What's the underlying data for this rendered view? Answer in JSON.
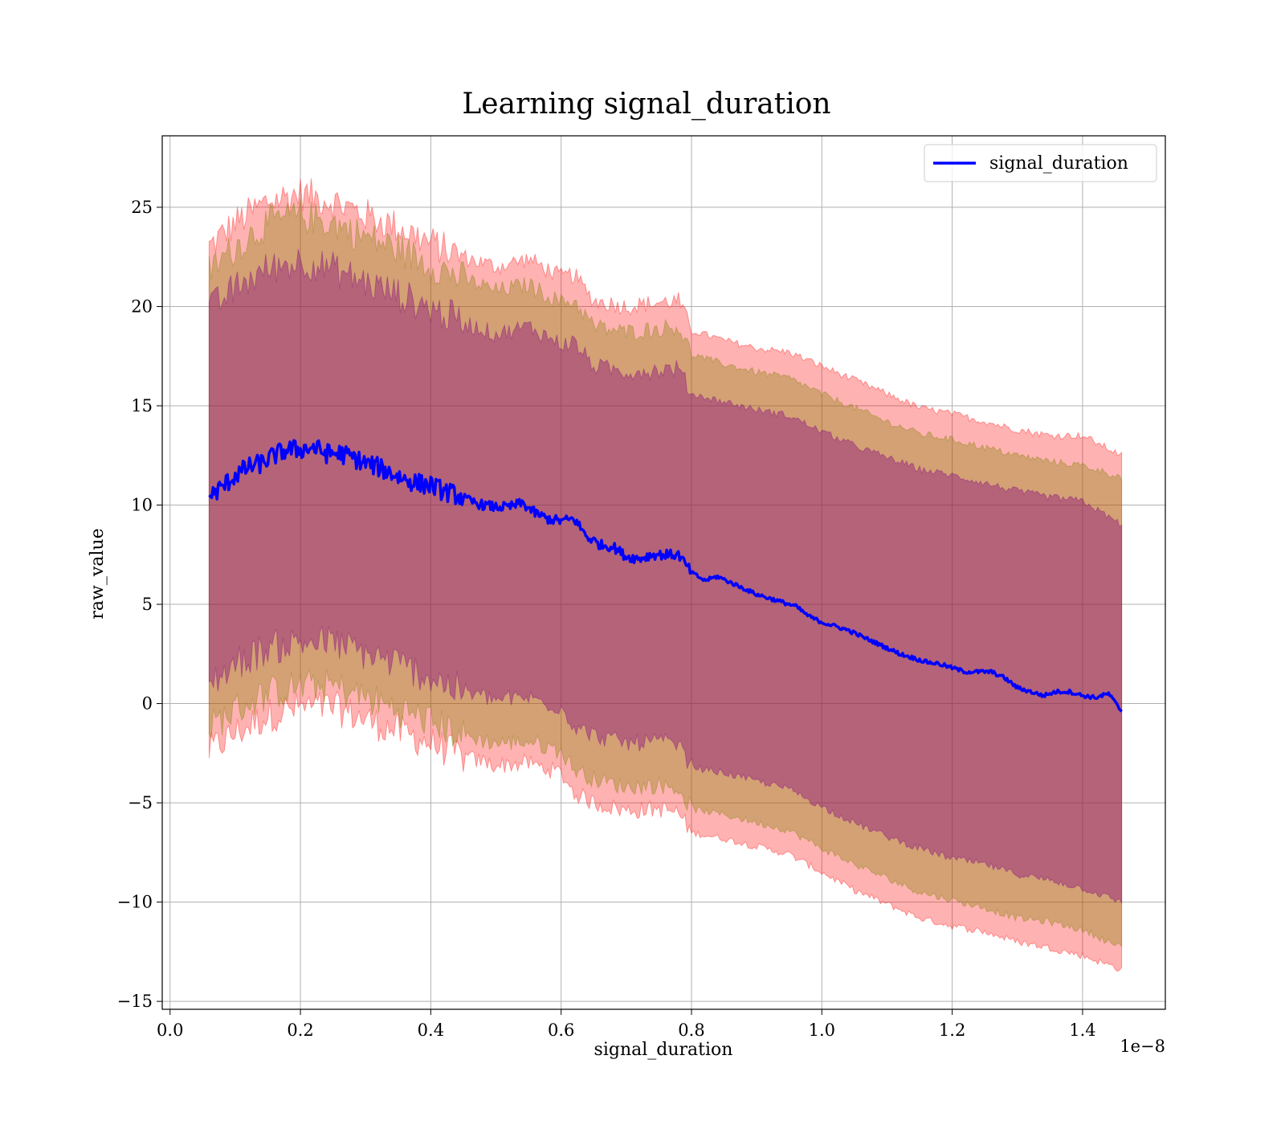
{
  "chart_data": {
    "type": "line",
    "title": "Learning signal_duration",
    "xlabel": "signal_duration",
    "ylabel": "raw_value",
    "x_offset_text": "1e−8",
    "xlim": [
      -0.012,
      1.527
    ],
    "ylim": [
      -15.4,
      28.6
    ],
    "x_ticks": [
      0.0,
      0.2,
      0.4,
      0.6,
      0.8,
      1.0,
      1.2,
      1.4
    ],
    "x_tick_labels": [
      "0.0",
      "0.2",
      "0.4",
      "0.6",
      "0.8",
      "1.0",
      "1.2",
      "1.4"
    ],
    "y_ticks": [
      -15,
      -10,
      -5,
      0,
      5,
      10,
      15,
      20,
      25
    ],
    "y_tick_labels": [
      "−15",
      "−10",
      "−5",
      "0",
      "5",
      "10",
      "15",
      "20",
      "25"
    ],
    "grid": true,
    "legend": {
      "placement": "top-right",
      "entries": [
        "signal_duration"
      ]
    },
    "colors": {
      "line": "#0000ff",
      "band_outer": "#ff0000",
      "band_middle": "#808000",
      "band_inner": "#800080"
    },
    "series": [
      {
        "name": "signal_duration",
        "role": "mean",
        "x": [
          0.06,
          0.08,
          0.1,
          0.12,
          0.14,
          0.16,
          0.18,
          0.2,
          0.22,
          0.24,
          0.26,
          0.28,
          0.3,
          0.32,
          0.34,
          0.36,
          0.38,
          0.4,
          0.42,
          0.44,
          0.46,
          0.48,
          0.5,
          0.52,
          0.54,
          0.56,
          0.58,
          0.6,
          0.62,
          0.64,
          0.66,
          0.68,
          0.7,
          0.72,
          0.74,
          0.76,
          0.78,
          0.8,
          0.82,
          0.84,
          0.86,
          0.88,
          0.9,
          0.92,
          0.94,
          0.96,
          0.98,
          1.0,
          1.02,
          1.04,
          1.06,
          1.08,
          1.1,
          1.12,
          1.14,
          1.16,
          1.18,
          1.2,
          1.22,
          1.24,
          1.26,
          1.28,
          1.3,
          1.32,
          1.34,
          1.36,
          1.38,
          1.4,
          1.42,
          1.44,
          1.46
        ],
        "y": [
          10.4,
          10.9,
          11.5,
          11.9,
          12.1,
          12.5,
          12.8,
          12.8,
          12.9,
          12.6,
          12.6,
          12.4,
          12.1,
          11.9,
          11.6,
          11.3,
          11.1,
          11.0,
          10.7,
          10.5,
          10.2,
          10.0,
          9.9,
          9.9,
          10.1,
          9.6,
          9.3,
          9.2,
          9.3,
          8.4,
          8.0,
          7.9,
          7.4,
          7.3,
          7.5,
          7.5,
          7.5,
          6.6,
          6.2,
          6.4,
          6.1,
          5.8,
          5.5,
          5.3,
          5.1,
          4.9,
          4.4,
          4.1,
          3.9,
          3.7,
          3.4,
          3.1,
          2.8,
          2.5,
          2.3,
          2.1,
          2.0,
          1.8,
          1.6,
          1.6,
          1.6,
          1.3,
          0.8,
          0.6,
          0.4,
          0.6,
          0.6,
          0.4,
          0.3,
          0.5,
          -0.4
        ]
      },
      {
        "role": "band_outer",
        "x": [
          0.06,
          0.1,
          0.15,
          0.2,
          0.25,
          0.3,
          0.35,
          0.4,
          0.45,
          0.5,
          0.55,
          0.6,
          0.62,
          0.65,
          0.7,
          0.75,
          0.78,
          0.8,
          0.85,
          0.9,
          0.95,
          1.0,
          1.05,
          1.1,
          1.15,
          1.2,
          1.25,
          1.3,
          1.35,
          1.4,
          1.46
        ],
        "upper": [
          23.0,
          24.2,
          25.3,
          25.7,
          25.3,
          24.6,
          24.0,
          23.2,
          22.5,
          22.0,
          22.4,
          21.5,
          21.6,
          20.3,
          20.0,
          20.2,
          20.3,
          18.8,
          18.3,
          17.9,
          17.7,
          17.0,
          16.3,
          15.6,
          14.9,
          14.6,
          14.2,
          13.8,
          13.5,
          13.5,
          12.5
        ],
        "lower": [
          -2.4,
          -1.5,
          -0.6,
          -0.2,
          -0.2,
          -0.8,
          -1.4,
          -2.0,
          -2.7,
          -3.1,
          -3.0,
          -3.5,
          -4.5,
          -5.0,
          -5.4,
          -5.3,
          -5.5,
          -6.5,
          -6.8,
          -7.2,
          -7.6,
          -8.5,
          -9.4,
          -10.1,
          -10.8,
          -11.2,
          -11.5,
          -12.0,
          -12.3,
          -12.7,
          -13.4
        ]
      },
      {
        "role": "band_middle",
        "x": [
          0.06,
          0.1,
          0.15,
          0.2,
          0.25,
          0.3,
          0.35,
          0.4,
          0.45,
          0.5,
          0.55,
          0.6,
          0.62,
          0.65,
          0.7,
          0.75,
          0.78,
          0.8,
          0.85,
          0.9,
          0.95,
          1.0,
          1.05,
          1.1,
          1.15,
          1.2,
          1.25,
          1.3,
          1.35,
          1.4,
          1.46
        ],
        "upper": [
          21.8,
          23.0,
          24.2,
          24.6,
          24.2,
          23.5,
          22.9,
          22.1,
          21.4,
          20.8,
          21.1,
          20.2,
          20.3,
          19.0,
          18.7,
          18.9,
          19.0,
          17.6,
          17.1,
          16.7,
          16.4,
          15.6,
          14.9,
          14.2,
          13.6,
          13.3,
          12.9,
          12.5,
          12.2,
          12.0,
          11.4
        ],
        "lower": [
          -1.2,
          -0.3,
          0.5,
          0.9,
          0.9,
          0.3,
          -0.3,
          -0.9,
          -1.6,
          -2.0,
          -1.9,
          -2.4,
          -3.3,
          -3.8,
          -4.2,
          -4.1,
          -4.3,
          -5.3,
          -5.6,
          -6.0,
          -6.4,
          -7.3,
          -8.1,
          -8.8,
          -9.5,
          -9.9,
          -10.3,
          -10.8,
          -11.0,
          -11.4,
          -12.3
        ]
      },
      {
        "role": "band_inner",
        "x": [
          0.06,
          0.1,
          0.15,
          0.2,
          0.25,
          0.3,
          0.35,
          0.4,
          0.45,
          0.5,
          0.55,
          0.6,
          0.62,
          0.65,
          0.7,
          0.75,
          0.78,
          0.8,
          0.85,
          0.9,
          0.95,
          1.0,
          1.05,
          1.1,
          1.15,
          1.2,
          1.25,
          1.3,
          1.35,
          1.4,
          1.46
        ],
        "upper": [
          19.8,
          20.9,
          21.9,
          22.3,
          21.9,
          21.2,
          20.6,
          19.9,
          19.2,
          18.6,
          19.0,
          18.1,
          18.2,
          17.0,
          16.7,
          16.8,
          16.9,
          15.6,
          15.2,
          14.8,
          14.5,
          13.7,
          13.0,
          12.4,
          11.8,
          11.5,
          11.1,
          10.7,
          10.4,
          10.2,
          9.0
        ],
        "lower": [
          1.0,
          2.0,
          2.8,
          3.1,
          3.1,
          2.5,
          2.0,
          1.3,
          0.6,
          0.2,
          0.3,
          -0.2,
          -1.1,
          -1.6,
          -2.0,
          -1.9,
          -2.1,
          -3.2,
          -3.5,
          -3.9,
          -4.3,
          -5.2,
          -6.0,
          -6.7,
          -7.3,
          -7.8,
          -8.1,
          -8.6,
          -8.9,
          -9.3,
          -10.0
        ]
      }
    ]
  }
}
